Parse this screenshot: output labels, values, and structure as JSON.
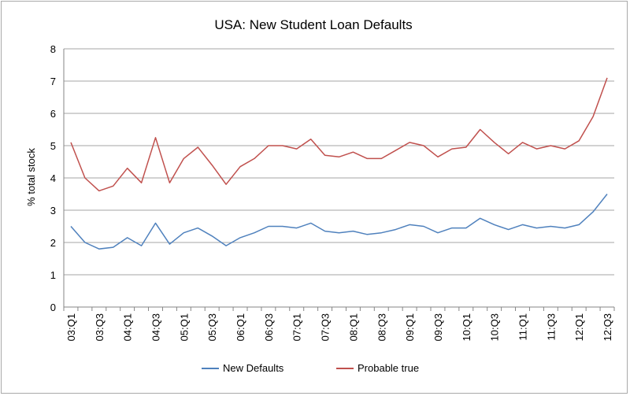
{
  "chart_data": {
    "type": "line",
    "title": "USA: New Student Loan Defaults",
    "xlabel": "",
    "ylabel": "% total stock",
    "ylim": [
      0,
      8
    ],
    "yticks": [
      0,
      1,
      2,
      3,
      4,
      5,
      6,
      7,
      8
    ],
    "grid": "horizontal",
    "legend": "bottom",
    "categories": [
      "03:Q1",
      "03:Q2",
      "03:Q3",
      "03:Q4",
      "04:Q1",
      "04:Q2",
      "04:Q3",
      "04:Q4",
      "05:Q1",
      "05:Q2",
      "05:Q3",
      "05:Q4",
      "06:Q1",
      "06:Q2",
      "06:Q3",
      "06:Q4",
      "07:Q1",
      "07:Q2",
      "07:Q3",
      "07:Q4",
      "08:Q1",
      "08:Q2",
      "08:Q3",
      "08:Q4",
      "09:Q1",
      "09:Q2",
      "09:Q3",
      "09:Q4",
      "10:Q1",
      "10:Q2",
      "10:Q3",
      "10:Q4",
      "11:Q1",
      "11:Q2",
      "11:Q3",
      "11:Q4",
      "12:Q1",
      "12:Q2",
      "12:Q3"
    ],
    "tick_labels": [
      "03:Q1",
      "03:Q3",
      "04:Q1",
      "04:Q3",
      "05:Q1",
      "05:Q3",
      "06:Q1",
      "06:Q3",
      "07:Q1",
      "07:Q3",
      "08:Q1",
      "08:Q3",
      "09:Q1",
      "09:Q3",
      "10:Q1",
      "10:Q3",
      "11:Q1",
      "11:Q3",
      "12:Q1",
      "12:Q3"
    ],
    "series": [
      {
        "name": "New Defaults",
        "color": "#4f81bd",
        "values": [
          2.5,
          2.0,
          1.8,
          1.85,
          2.15,
          1.9,
          2.6,
          1.95,
          2.3,
          2.45,
          2.2,
          1.9,
          2.15,
          2.3,
          2.5,
          2.5,
          2.45,
          2.6,
          2.35,
          2.3,
          2.35,
          2.25,
          2.3,
          2.4,
          2.55,
          2.5,
          2.3,
          2.45,
          2.45,
          2.75,
          2.55,
          2.4,
          2.55,
          2.45,
          2.5,
          2.45,
          2.55,
          2.95,
          3.5
        ]
      },
      {
        "name": "Probable true",
        "color": "#c0504d",
        "values": [
          5.1,
          4.0,
          3.6,
          3.75,
          4.3,
          3.85,
          5.25,
          3.85,
          4.6,
          4.95,
          4.4,
          3.8,
          4.35,
          4.6,
          5.0,
          5.0,
          4.9,
          5.2,
          4.7,
          4.65,
          4.8,
          4.6,
          4.6,
          4.85,
          5.1,
          5.0,
          4.65,
          4.9,
          4.95,
          5.5,
          5.1,
          4.75,
          5.1,
          4.9,
          5.0,
          4.9,
          5.15,
          5.9,
          7.1
        ]
      }
    ]
  }
}
